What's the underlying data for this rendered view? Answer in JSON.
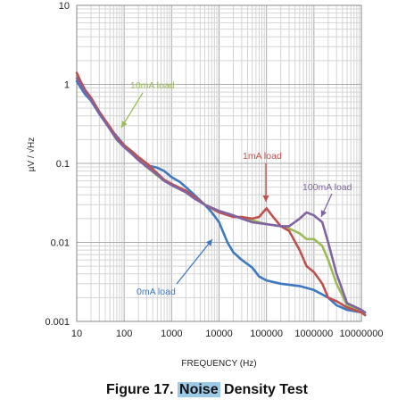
{
  "chart_data": {
    "type": "line",
    "xscale": "log",
    "yscale": "log",
    "xlim": [
      10,
      10000000
    ],
    "ylim": [
      0.001,
      10
    ],
    "xlabel": "FREQUENCY (Hz)",
    "ylabel": "µV / √Hz",
    "x_ticks": [
      "10",
      "100",
      "1000",
      "10000",
      "100000",
      "1000000",
      "10000000"
    ],
    "y_ticks": [
      "0.001",
      "0.01",
      "0.1",
      "1",
      "10"
    ],
    "grid": true,
    "series": [
      {
        "name": "0mA load",
        "color": "#3e78c0",
        "points": [
          [
            9,
            1.1
          ],
          [
            12,
            0.92
          ],
          [
            15,
            0.75
          ],
          [
            20,
            0.62
          ],
          [
            25,
            0.5
          ],
          [
            30,
            0.42
          ],
          [
            40,
            0.33
          ],
          [
            50,
            0.28
          ],
          [
            70,
            0.22
          ],
          [
            100,
            0.17
          ],
          [
            150,
            0.13
          ],
          [
            200,
            0.11
          ],
          [
            300,
            0.095
          ],
          [
            500,
            0.088
          ],
          [
            700,
            0.08
          ],
          [
            1000,
            0.067
          ],
          [
            1500,
            0.058
          ],
          [
            2000,
            0.05
          ],
          [
            3000,
            0.04
          ],
          [
            5000,
            0.03
          ],
          [
            7000,
            0.024
          ],
          [
            10000,
            0.018
          ],
          [
            15000,
            0.01
          ],
          [
            20000,
            0.0075
          ],
          [
            30000,
            0.006
          ],
          [
            50000,
            0.0048
          ],
          [
            70000,
            0.0037
          ],
          [
            100000,
            0.0033
          ],
          [
            200000,
            0.003
          ],
          [
            500000,
            0.0028
          ],
          [
            1000000,
            0.0025
          ],
          [
            2000000,
            0.002
          ],
          [
            3000000,
            0.0016
          ],
          [
            5000000,
            0.0014
          ],
          [
            10000000,
            0.0013
          ],
          [
            12000000,
            0.0012
          ]
        ]
      },
      {
        "name": "10mA load",
        "color": "#9bbb59",
        "points": [
          [
            9,
            1.3
          ],
          [
            12,
            1.05
          ],
          [
            15,
            0.82
          ],
          [
            20,
            0.66
          ],
          [
            25,
            0.52
          ],
          [
            30,
            0.44
          ],
          [
            40,
            0.34
          ],
          [
            50,
            0.28
          ],
          [
            70,
            0.2
          ],
          [
            100,
            0.16
          ],
          [
            150,
            0.14
          ],
          [
            200,
            0.115
          ],
          [
            300,
            0.09
          ],
          [
            500,
            0.07
          ],
          [
            700,
            0.06
          ],
          [
            1000,
            0.055
          ],
          [
            2000,
            0.045
          ],
          [
            3000,
            0.037
          ],
          [
            5000,
            0.03
          ],
          [
            10000,
            0.025
          ],
          [
            20000,
            0.022
          ],
          [
            30000,
            0.02
          ],
          [
            50000,
            0.019
          ],
          [
            100000,
            0.017
          ],
          [
            200000,
            0.016
          ],
          [
            300000,
            0.015
          ],
          [
            500000,
            0.013
          ],
          [
            700000,
            0.011
          ],
          [
            1000000,
            0.011
          ],
          [
            1500000,
            0.009
          ],
          [
            2000000,
            0.006
          ],
          [
            3000000,
            0.003
          ],
          [
            5000000,
            0.0016
          ],
          [
            10000000,
            0.0013
          ],
          [
            12000000,
            0.0012
          ]
        ]
      },
      {
        "name": "1mA load",
        "color": "#c0504d",
        "points": [
          [
            9,
            1.4
          ],
          [
            12,
            1.1
          ],
          [
            15,
            0.85
          ],
          [
            20,
            0.68
          ],
          [
            25,
            0.54
          ],
          [
            30,
            0.45
          ],
          [
            40,
            0.35
          ],
          [
            50,
            0.29
          ],
          [
            70,
            0.21
          ],
          [
            100,
            0.17
          ],
          [
            150,
            0.14
          ],
          [
            200,
            0.12
          ],
          [
            300,
            0.1
          ],
          [
            500,
            0.075
          ],
          [
            700,
            0.062
          ],
          [
            1000,
            0.055
          ],
          [
            2000,
            0.045
          ],
          [
            3000,
            0.038
          ],
          [
            5000,
            0.03
          ],
          [
            10000,
            0.024
          ],
          [
            20000,
            0.021
          ],
          [
            30000,
            0.021
          ],
          [
            50000,
            0.02
          ],
          [
            70000,
            0.021
          ],
          [
            100000,
            0.027
          ],
          [
            130000,
            0.022
          ],
          [
            200000,
            0.016
          ],
          [
            300000,
            0.014
          ],
          [
            500000,
            0.008
          ],
          [
            700000,
            0.005
          ],
          [
            1000000,
            0.0042
          ],
          [
            1500000,
            0.003
          ],
          [
            2000000,
            0.002
          ],
          [
            3000000,
            0.0018
          ],
          [
            5000000,
            0.0015
          ],
          [
            10000000,
            0.0013
          ],
          [
            12000000,
            0.0012
          ]
        ]
      },
      {
        "name": "100mA load",
        "color": "#8064a2",
        "points": [
          [
            9,
            1.2
          ],
          [
            12,
            1.0
          ],
          [
            15,
            0.8
          ],
          [
            20,
            0.64
          ],
          [
            25,
            0.51
          ],
          [
            30,
            0.43
          ],
          [
            40,
            0.33
          ],
          [
            50,
            0.27
          ],
          [
            70,
            0.2
          ],
          [
            100,
            0.16
          ],
          [
            150,
            0.13
          ],
          [
            200,
            0.11
          ],
          [
            300,
            0.09
          ],
          [
            500,
            0.072
          ],
          [
            700,
            0.06
          ],
          [
            1000,
            0.053
          ],
          [
            2000,
            0.043
          ],
          [
            3000,
            0.036
          ],
          [
            5000,
            0.03
          ],
          [
            10000,
            0.025
          ],
          [
            20000,
            0.022
          ],
          [
            30000,
            0.02
          ],
          [
            50000,
            0.018
          ],
          [
            100000,
            0.017
          ],
          [
            200000,
            0.016
          ],
          [
            300000,
            0.016
          ],
          [
            500000,
            0.02
          ],
          [
            700000,
            0.024
          ],
          [
            1000000,
            0.022
          ],
          [
            1500000,
            0.018
          ],
          [
            2000000,
            0.01
          ],
          [
            3000000,
            0.004
          ],
          [
            5000000,
            0.0017
          ],
          [
            10000000,
            0.0014
          ],
          [
            12000000,
            0.0013
          ]
        ]
      }
    ],
    "annotations": [
      {
        "text": "10mA load",
        "color": "#9bbb59"
      },
      {
        "text": "1mA load",
        "color": "#c0504d"
      },
      {
        "text": "100mA load",
        "color": "#8064a2"
      },
      {
        "text": "0mA load",
        "color": "#3e78c0"
      }
    ]
  },
  "caption": {
    "prefix": "Figure 17. ",
    "highlight": "Noise",
    "suffix": " Density Test"
  }
}
